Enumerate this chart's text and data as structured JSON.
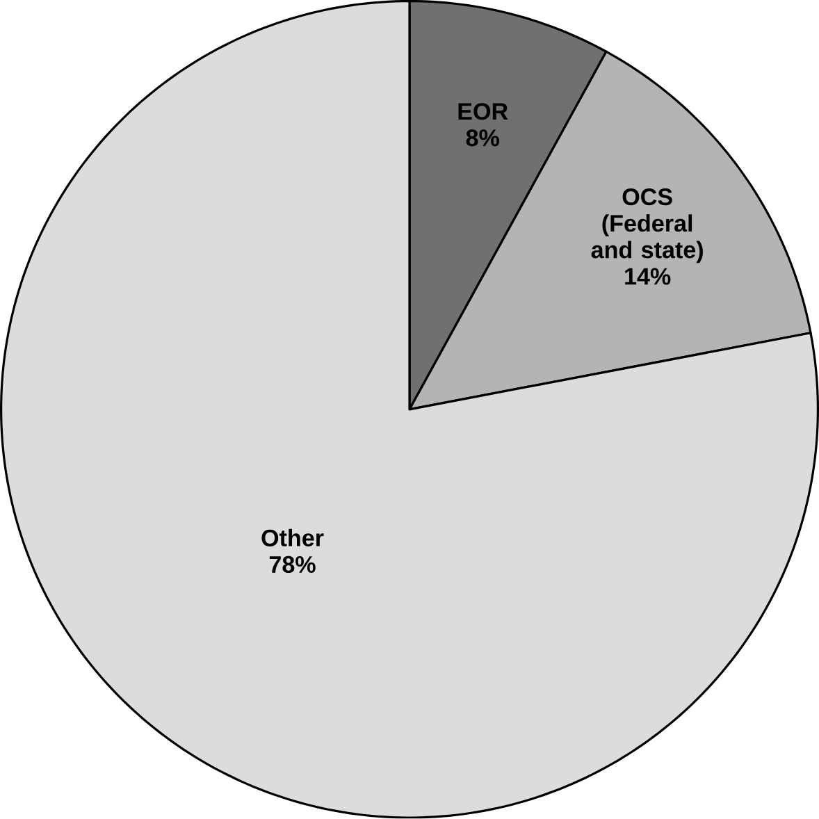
{
  "chart_data": {
    "type": "pie",
    "categories": [
      "EOR",
      "OCS (Federal and state)",
      "Other"
    ],
    "values": [
      8,
      14,
      78
    ],
    "colors": [
      "#707070",
      "#b4b4b4",
      "#dcdcdc"
    ],
    "value_labels": [
      "8%",
      "14%",
      "78%"
    ]
  }
}
